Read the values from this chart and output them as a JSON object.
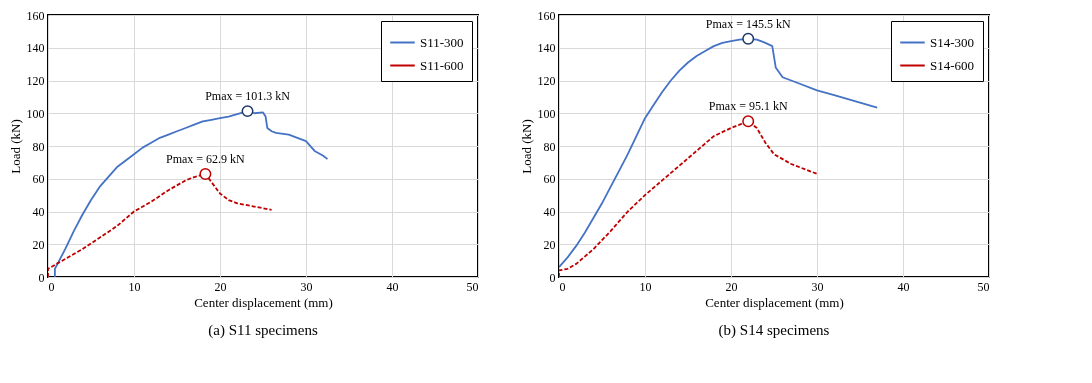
{
  "chart_data": [
    {
      "type": "line",
      "title": "(a) S11 specimens",
      "xlabel": "Center displacement (mm)",
      "ylabel": "Load (kN)",
      "xlim": [
        0,
        50
      ],
      "ylim": [
        0,
        160
      ],
      "xticks": [
        0,
        10,
        20,
        30,
        40,
        50
      ],
      "yticks": [
        0,
        20,
        40,
        60,
        80,
        100,
        120,
        140,
        160
      ],
      "grid": true,
      "legend": "top right",
      "annotations": [
        {
          "text": "Pmax = 101.3 kN",
          "x": 23.2,
          "y": 101.3
        },
        {
          "text": "Pmax = 62.9 kN",
          "x": 18.3,
          "y": 62.9
        }
      ],
      "series": [
        {
          "name": "S11-300",
          "color": "#4472c4",
          "line_style": "solid",
          "x": [
            0.8,
            0.8,
            1.3,
            2,
            3,
            4,
            5,
            6,
            7,
            8,
            9,
            10,
            11,
            12,
            13,
            14,
            15,
            16,
            17,
            18,
            19,
            20,
            21,
            22,
            23.2,
            24,
            25,
            25.3,
            25.5,
            26,
            26.5,
            28,
            29,
            30,
            31,
            32,
            32.5
          ],
          "values": [
            0,
            5,
            10,
            17,
            28,
            38,
            47,
            55,
            61,
            67,
            71,
            75,
            79,
            82,
            85,
            87,
            89,
            91,
            93,
            95,
            96,
            97,
            98,
            99.5,
            101.3,
            100,
            100.5,
            98,
            91,
            89,
            88,
            87,
            85,
            83,
            77,
            74,
            72
          ]
        },
        {
          "name": "S11-600",
          "color": "#c00000",
          "line_style": "dashed",
          "x": [
            0,
            0,
            1,
            2,
            4,
            6,
            8,
            10,
            12,
            14,
            16,
            17,
            18.3,
            19,
            20,
            21,
            22,
            24,
            26
          ],
          "values": [
            0,
            5,
            8,
            11,
            17,
            24,
            31,
            40,
            46,
            53,
            59,
            61,
            62.9,
            58,
            51,
            47,
            45,
            43,
            41
          ]
        },
        {
          "type": "scatter",
          "color": "#1f3864",
          "marker": "circle",
          "x": [
            23.2
          ],
          "values": [
            101.3
          ]
        },
        {
          "type": "scatter",
          "color": "#c00000",
          "marker": "circle",
          "x": [
            18.3
          ],
          "values": [
            62.9
          ]
        }
      ]
    },
    {
      "type": "line",
      "title": "(b) S14 specimens",
      "xlabel": "Center displacement (mm)",
      "ylabel": "Load (kN)",
      "xlim": [
        0,
        50
      ],
      "ylim": [
        0,
        160
      ],
      "xticks": [
        0,
        10,
        20,
        30,
        40,
        50
      ],
      "yticks": [
        0,
        20,
        40,
        60,
        80,
        100,
        120,
        140,
        160
      ],
      "grid": true,
      "legend": "top right",
      "annotations": [
        {
          "text": "Pmax = 145.5 kN",
          "x": 22,
          "y": 145.5
        },
        {
          "text": "Pmax = 95.1 kN",
          "x": 22,
          "y": 95.1
        }
      ],
      "series": [
        {
          "name": "S14-300",
          "color": "#4472c4",
          "line_style": "solid",
          "x": [
            0,
            1,
            2,
            3,
            4,
            5,
            6,
            7,
            8,
            9,
            10,
            11,
            12,
            13,
            14,
            15,
            16,
            17,
            18,
            19,
            20,
            21,
            22,
            23,
            24,
            24.8,
            25.2,
            26,
            28,
            30,
            32,
            34,
            36,
            37
          ],
          "values": [
            6,
            12,
            19,
            27,
            36,
            45,
            55,
            65,
            75,
            86,
            97,
            105,
            113,
            120,
            126,
            131,
            135,
            138,
            141,
            143,
            144,
            145,
            145.5,
            145,
            143,
            141,
            128,
            122,
            118,
            114,
            111,
            108,
            105,
            103.5
          ]
        },
        {
          "name": "S14-600",
          "color": "#c00000",
          "line_style": "dashed",
          "x": [
            0,
            0,
            1,
            2,
            4,
            6,
            8,
            10,
            12,
            14,
            16,
            18,
            20,
            21,
            22,
            23,
            24,
            25,
            27,
            29,
            30
          ],
          "values": [
            0,
            4,
            5,
            8,
            17,
            28,
            40,
            50,
            59,
            68,
            77,
            86,
            91,
            93,
            95.1,
            91,
            82,
            75,
            69,
            65,
            63
          ]
        },
        {
          "type": "scatter",
          "color": "#1f3864",
          "marker": "circle",
          "x": [
            22
          ],
          "values": [
            145.5
          ]
        },
        {
          "type": "scatter",
          "color": "#c00000",
          "marker": "circle",
          "x": [
            22
          ],
          "values": [
            95.1
          ]
        }
      ]
    }
  ]
}
